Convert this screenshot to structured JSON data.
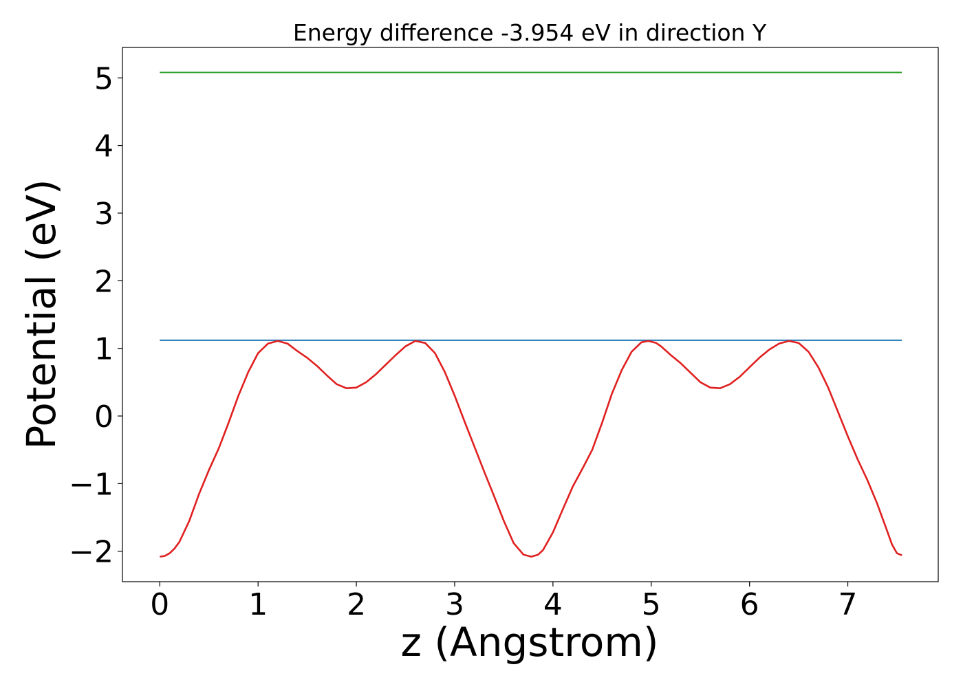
{
  "chart_data": {
    "type": "line",
    "title": "Energy difference -3.954 eV in direction Y",
    "xlabel": "z (Angstrom)",
    "ylabel": "Potential (eV)",
    "xlim": [
      -0.38,
      7.92
    ],
    "ylim": [
      -2.45,
      5.45
    ],
    "x_ticks": [
      0,
      1,
      2,
      3,
      4,
      5,
      6,
      7
    ],
    "x_tick_labels": [
      "0",
      "1",
      "2",
      "3",
      "4",
      "5",
      "6",
      "7"
    ],
    "y_ticks": [
      -2,
      -1,
      0,
      1,
      2,
      3,
      4,
      5
    ],
    "y_tick_labels": [
      "−2",
      "−1",
      "0",
      "1",
      "2",
      "3",
      "4",
      "5"
    ],
    "grid": false,
    "legend": "none",
    "series": [
      {
        "color": "#2ca02c",
        "x": [
          0.0,
          7.55
        ],
        "y": [
          5.08,
          5.08
        ]
      },
      {
        "color": "#1f77b4",
        "x": [
          0.0,
          7.55
        ],
        "y": [
          1.12,
          1.12
        ]
      },
      {
        "color": "#e02020",
        "x": [
          0.0,
          0.05,
          0.1,
          0.15,
          0.2,
          0.3,
          0.4,
          0.5,
          0.6,
          0.7,
          0.8,
          0.9,
          1.0,
          1.1,
          1.2,
          1.3,
          1.4,
          1.5,
          1.6,
          1.7,
          1.8,
          1.9,
          2.0,
          2.1,
          2.2,
          2.3,
          2.4,
          2.5,
          2.6,
          2.7,
          2.8,
          2.9,
          3.0,
          3.1,
          3.2,
          3.3,
          3.4,
          3.5,
          3.6,
          3.7,
          3.78,
          3.85,
          3.9,
          4.0,
          4.1,
          4.2,
          4.3,
          4.4,
          4.5,
          4.6,
          4.7,
          4.8,
          4.9,
          4.97,
          5.05,
          5.1,
          5.2,
          5.3,
          5.4,
          5.5,
          5.6,
          5.7,
          5.8,
          5.9,
          6.0,
          6.1,
          6.2,
          6.3,
          6.4,
          6.5,
          6.6,
          6.7,
          6.8,
          6.9,
          7.0,
          7.1,
          7.2,
          7.3,
          7.4,
          7.45,
          7.5,
          7.55
        ],
        "y": [
          -2.08,
          -2.07,
          -2.03,
          -1.96,
          -1.86,
          -1.55,
          -1.15,
          -0.8,
          -0.48,
          -0.1,
          0.3,
          0.65,
          0.93,
          1.07,
          1.11,
          1.07,
          0.96,
          0.86,
          0.74,
          0.6,
          0.47,
          0.41,
          0.42,
          0.5,
          0.62,
          0.76,
          0.9,
          1.03,
          1.11,
          1.08,
          0.93,
          0.65,
          0.3,
          -0.08,
          -0.45,
          -0.82,
          -1.18,
          -1.55,
          -1.88,
          -2.05,
          -2.08,
          -2.05,
          -1.98,
          -1.72,
          -1.38,
          -1.05,
          -0.78,
          -0.5,
          -0.1,
          0.33,
          0.68,
          0.95,
          1.09,
          1.11,
          1.08,
          1.03,
          0.9,
          0.78,
          0.64,
          0.5,
          0.42,
          0.41,
          0.47,
          0.58,
          0.72,
          0.86,
          0.98,
          1.07,
          1.11,
          1.08,
          0.95,
          0.72,
          0.42,
          0.06,
          -0.3,
          -0.64,
          -0.95,
          -1.3,
          -1.7,
          -1.9,
          -2.03,
          -2.06
        ]
      }
    ]
  }
}
